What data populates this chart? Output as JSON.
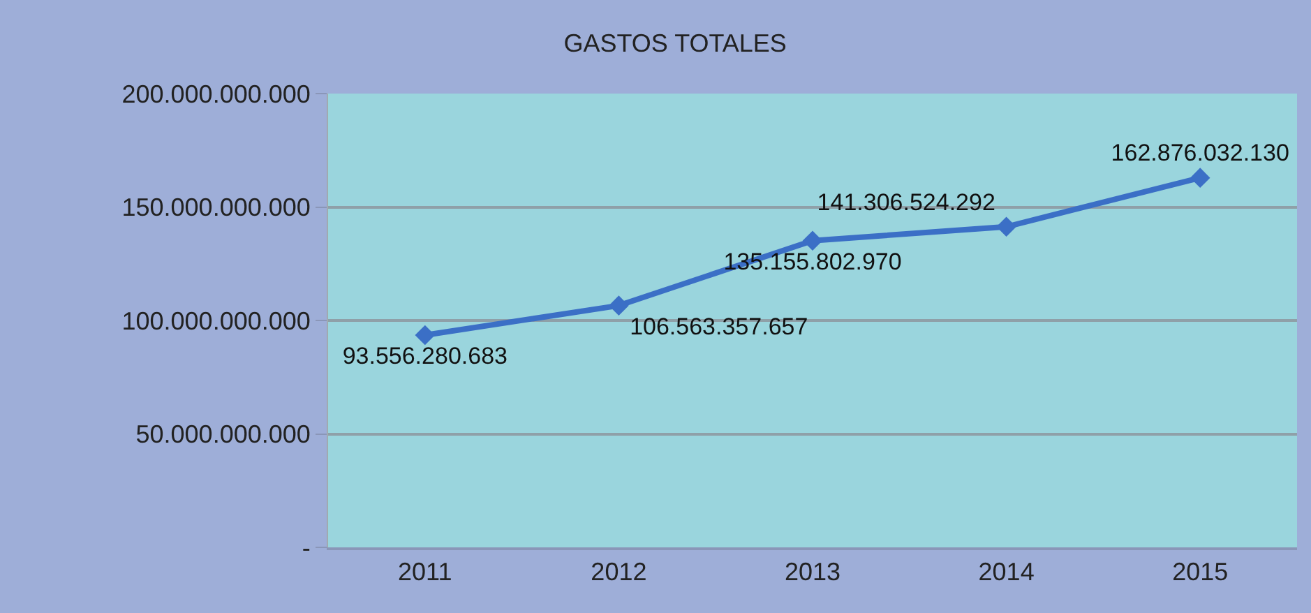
{
  "chart_data": {
    "type": "line",
    "title": "GASTOS TOTALES",
    "categories": [
      "2011",
      "2012",
      "2013",
      "2014",
      "2015"
    ],
    "series": [
      {
        "color": "#3b6fc6",
        "values": [
          93556280683,
          106563357657,
          135155802970,
          141306524292,
          162876032130
        ],
        "value_labels": [
          "93.556.280.683",
          "106.563.357.657",
          "135.155.802.970",
          "141.306.524.292",
          "162.876.032.130"
        ]
      }
    ],
    "ylim": [
      0,
      200000000000
    ],
    "yticks": [
      {
        "value": 0,
        "label": "-"
      },
      {
        "value": 50000000000,
        "label": "50.000.000.000"
      },
      {
        "value": 100000000000,
        "label": "100.000.000.000"
      },
      {
        "value": 150000000000,
        "label": "150.000.000.000"
      },
      {
        "value": 200000000000,
        "label": "200.000.000.000"
      }
    ],
    "grid": "y",
    "legend": false,
    "marker": "diamond",
    "line_style": "solid"
  }
}
